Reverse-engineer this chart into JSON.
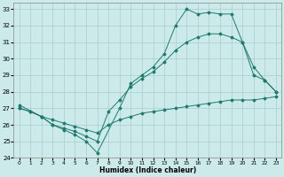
{
  "xlabel": "Humidex (Indice chaleur)",
  "xlim": [
    -0.5,
    23.5
  ],
  "ylim": [
    24,
    33.4
  ],
  "yticks": [
    24,
    25,
    26,
    27,
    28,
    29,
    30,
    31,
    32,
    33
  ],
  "xticks": [
    0,
    1,
    2,
    3,
    4,
    5,
    6,
    7,
    8,
    9,
    10,
    11,
    12,
    13,
    14,
    15,
    16,
    17,
    18,
    19,
    20,
    21,
    22,
    23
  ],
  "bg_color": "#cdeaea",
  "grid_color": "#a8cccc",
  "line_color": "#1e7a6e",
  "lines": [
    {
      "x": [
        0,
        1,
        2,
        3,
        4,
        5,
        6,
        7,
        8,
        9,
        10,
        11,
        12,
        13,
        14,
        15,
        16,
        17,
        18,
        19,
        20,
        21,
        22,
        23
      ],
      "y": [
        27.0,
        26.8,
        26.5,
        26.3,
        26.1,
        25.9,
        25.7,
        25.5,
        26.0,
        26.3,
        26.5,
        26.7,
        26.8,
        26.9,
        27.0,
        27.1,
        27.2,
        27.3,
        27.4,
        27.5,
        27.5,
        27.5,
        27.6,
        27.7
      ]
    },
    {
      "x": [
        0,
        1,
        2,
        3,
        4,
        5,
        6,
        7,
        8,
        9,
        10,
        11,
        12,
        13,
        14,
        15,
        16,
        17,
        18,
        19,
        20,
        21,
        22,
        23
      ],
      "y": [
        27.0,
        26.8,
        26.5,
        26.0,
        25.8,
        25.6,
        25.3,
        25.0,
        26.8,
        27.5,
        28.3,
        28.8,
        29.2,
        29.8,
        30.5,
        31.0,
        31.3,
        31.5,
        31.5,
        31.3,
        31.0,
        29.5,
        28.7,
        28.0
      ]
    },
    {
      "x": [
        0,
        2,
        3,
        4,
        5,
        6,
        7,
        9,
        10,
        11,
        12,
        13,
        14,
        15,
        16,
        17,
        18,
        19,
        20,
        21,
        22,
        23
      ],
      "y": [
        27.2,
        26.5,
        26.0,
        25.7,
        25.4,
        25.0,
        24.3,
        27.0,
        28.5,
        29.0,
        29.5,
        30.3,
        32.0,
        33.0,
        32.7,
        32.8,
        32.7,
        32.7,
        31.0,
        29.0,
        28.7,
        28.0
      ]
    }
  ]
}
